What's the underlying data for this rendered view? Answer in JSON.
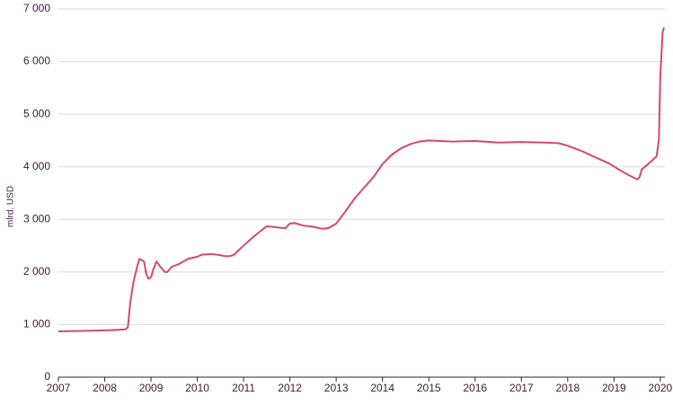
{
  "chart_data": {
    "type": "line",
    "y_label": "mlrd. USD",
    "x": [
      2007.0,
      2007.5,
      2008.0,
      2008.3,
      2008.45,
      2008.5,
      2008.55,
      2008.62,
      2008.7,
      2008.75,
      2008.85,
      2008.9,
      2008.95,
      2009.0,
      2009.05,
      2009.12,
      2009.2,
      2009.3,
      2009.35,
      2009.45,
      2009.6,
      2009.8,
      2010.0,
      2010.1,
      2010.3,
      2010.5,
      2010.6,
      2010.7,
      2010.8,
      2010.9,
      2011.0,
      2011.2,
      2011.4,
      2011.5,
      2011.6,
      2011.9,
      2012.0,
      2012.1,
      2012.3,
      2012.5,
      2012.7,
      2012.85,
      2013.0,
      2013.2,
      2013.4,
      2013.6,
      2013.8,
      2014.0,
      2014.2,
      2014.4,
      2014.6,
      2014.8,
      2015.0,
      2015.5,
      2016.0,
      2016.5,
      2017.0,
      2017.5,
      2017.8,
      2018.0,
      2018.3,
      2018.6,
      2018.9,
      2019.1,
      2019.3,
      2019.5,
      2019.55,
      2019.6,
      2019.8,
      2019.92,
      2019.97,
      2020.0,
      2020.05,
      2020.08
    ],
    "series": [
      {
        "color": "#d6486f",
        "values": [
          870,
          880,
          890,
          900,
          910,
          950,
          1400,
          1800,
          2100,
          2250,
          2200,
          1950,
          1870,
          1900,
          2050,
          2200,
          2100,
          2000,
          2000,
          2100,
          2150,
          2250,
          2290,
          2330,
          2340,
          2320,
          2300,
          2300,
          2330,
          2420,
          2500,
          2660,
          2800,
          2870,
          2860,
          2830,
          2920,
          2930,
          2880,
          2860,
          2820,
          2840,
          2920,
          3150,
          3400,
          3600,
          3800,
          4050,
          4230,
          4350,
          4430,
          4480,
          4500,
          4480,
          4490,
          4460,
          4470,
          4460,
          4450,
          4400,
          4300,
          4180,
          4060,
          3950,
          3850,
          3760,
          3800,
          3950,
          4100,
          4200,
          4500,
          5700,
          6550,
          6650
        ]
      }
    ],
    "xlim": [
      2007,
      2020.1
    ],
    "xticks": [
      2007,
      2008,
      2009,
      2010,
      2011,
      2012,
      2013,
      2014,
      2015,
      2016,
      2017,
      2018,
      2019,
      2020
    ],
    "ylim": [
      0,
      7000
    ],
    "yticks": [
      0,
      {
        "value": 1000,
        "label": "1 000"
      },
      {
        "value": 2000,
        "label": "2 000"
      },
      {
        "value": 3000,
        "label": "3 000"
      },
      {
        "value": 4000,
        "label": "4 000"
      },
      {
        "value": 5000,
        "label": "5 000"
      },
      {
        "value": 6000,
        "label": "6 000"
      },
      {
        "value": 7000,
        "label": "7 000"
      }
    ],
    "grid": true
  }
}
